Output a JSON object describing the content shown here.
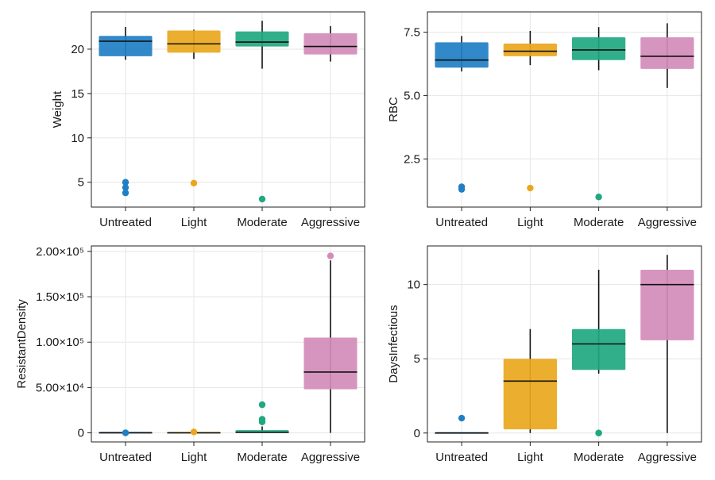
{
  "chart_data": [
    {
      "type": "box",
      "ylabel": "Weight",
      "categories": [
        "Untreated",
        "Light",
        "Moderate",
        "Aggressive"
      ],
      "yticks": [
        5,
        10,
        15,
        20
      ],
      "ytick_labels": [
        "5",
        "10",
        "15",
        "20"
      ],
      "ylim": [
        2.2,
        24.2
      ],
      "grid": true,
      "boxes": [
        {
          "category": "Untreated",
          "color": "#1f7fc4",
          "q1": 19.2,
          "median": 20.9,
          "q3": 21.5,
          "whisker_low": 18.8,
          "whisker_high": 22.5,
          "outliers": [
            5.0,
            4.4,
            3.8
          ]
        },
        {
          "category": "Light",
          "color": "#eaa71c",
          "q1": 19.6,
          "median": 20.6,
          "q3": 22.1,
          "whisker_low": 18.9,
          "whisker_high": 22.2,
          "outliers": [
            4.9
          ]
        },
        {
          "category": "Moderate",
          "color": "#1fa881",
          "q1": 20.3,
          "median": 20.8,
          "q3": 22.0,
          "whisker_low": 17.8,
          "whisker_high": 23.2,
          "outliers": [
            3.1
          ]
        },
        {
          "category": "Aggressive",
          "color": "#d38cb8",
          "q1": 19.4,
          "median": 20.3,
          "q3": 21.8,
          "whisker_low": 18.6,
          "whisker_high": 22.6,
          "outliers": []
        }
      ]
    },
    {
      "type": "box",
      "ylabel": "RBC",
      "categories": [
        "Untreated",
        "Light",
        "Moderate",
        "Aggressive"
      ],
      "yticks": [
        2.5,
        5.0,
        7.5
      ],
      "ytick_labels": [
        "2.5",
        "5.0",
        "7.5"
      ],
      "ylim": [
        0.6,
        8.3
      ],
      "grid": true,
      "boxes": [
        {
          "category": "Untreated",
          "color": "#1f7fc4",
          "q1": 6.1,
          "median": 6.4,
          "q3": 7.1,
          "whisker_low": 5.95,
          "whisker_high": 7.35,
          "outliers": [
            1.4,
            1.3
          ]
        },
        {
          "category": "Light",
          "color": "#eaa71c",
          "q1": 6.55,
          "median": 6.75,
          "q3": 7.05,
          "whisker_low": 6.2,
          "whisker_high": 7.55,
          "outliers": [
            1.35
          ]
        },
        {
          "category": "Moderate",
          "color": "#1fa881",
          "q1": 6.4,
          "median": 6.8,
          "q3": 7.3,
          "whisker_low": 6.0,
          "whisker_high": 7.7,
          "outliers": [
            1.0
          ]
        },
        {
          "category": "Aggressive",
          "color": "#d38cb8",
          "q1": 6.05,
          "median": 6.55,
          "q3": 7.3,
          "whisker_low": 5.3,
          "whisker_high": 7.85,
          "outliers": []
        }
      ]
    },
    {
      "type": "box",
      "ylabel": "ResistantDensity",
      "categories": [
        "Untreated",
        "Light",
        "Moderate",
        "Aggressive"
      ],
      "yticks": [
        0,
        50000,
        100000,
        150000,
        200000
      ],
      "ytick_labels": [
        "0",
        "5.00×10⁴",
        "1.00×10⁵",
        "1.50×10⁵",
        "2.00×10⁵"
      ],
      "ylim": [
        -10000,
        206000
      ],
      "grid": true,
      "boxes": [
        {
          "category": "Untreated",
          "color": "#1f7fc4",
          "q1": 0,
          "median": 0,
          "q3": 0,
          "whisker_low": 0,
          "whisker_high": 0,
          "outliers": [
            0,
            0
          ]
        },
        {
          "category": "Light",
          "color": "#eaa71c",
          "q1": 0,
          "median": 0,
          "q3": 0,
          "whisker_low": 0,
          "whisker_high": 0,
          "outliers": [
            1000
          ]
        },
        {
          "category": "Moderate",
          "color": "#1fa881",
          "q1": 0,
          "median": 500,
          "q3": 3000,
          "whisker_low": 0,
          "whisker_high": 7000,
          "outliers": [
            31000,
            15000,
            12000
          ]
        },
        {
          "category": "Aggressive",
          "color": "#d38cb8",
          "q1": 48000,
          "median": 67000,
          "q3": 105000,
          "whisker_low": 0,
          "whisker_high": 190000,
          "outliers": [
            195000
          ]
        }
      ]
    },
    {
      "type": "box",
      "ylabel": "DaysInfectious",
      "categories": [
        "Untreated",
        "Light",
        "Moderate",
        "Aggressive"
      ],
      "yticks": [
        0,
        5,
        10
      ],
      "ytick_labels": [
        "0",
        "5",
        "10"
      ],
      "ylim": [
        -0.6,
        12.6
      ],
      "grid": true,
      "boxes": [
        {
          "category": "Untreated",
          "color": "#1f7fc4",
          "q1": 0,
          "median": 0,
          "q3": 0,
          "whisker_low": 0,
          "whisker_high": 0,
          "outliers": [
            1
          ]
        },
        {
          "category": "Light",
          "color": "#eaa71c",
          "q1": 0.25,
          "median": 3.5,
          "q3": 5.0,
          "whisker_low": 0,
          "whisker_high": 7,
          "outliers": []
        },
        {
          "category": "Moderate",
          "color": "#1fa881",
          "q1": 4.25,
          "median": 6,
          "q3": 7,
          "whisker_low": 4,
          "whisker_high": 11,
          "outliers": [
            0,
            0
          ]
        },
        {
          "category": "Aggressive",
          "color": "#d38cb8",
          "q1": 6.25,
          "median": 10,
          "q3": 11,
          "whisker_low": 0,
          "whisker_high": 12,
          "outliers": []
        }
      ]
    }
  ]
}
